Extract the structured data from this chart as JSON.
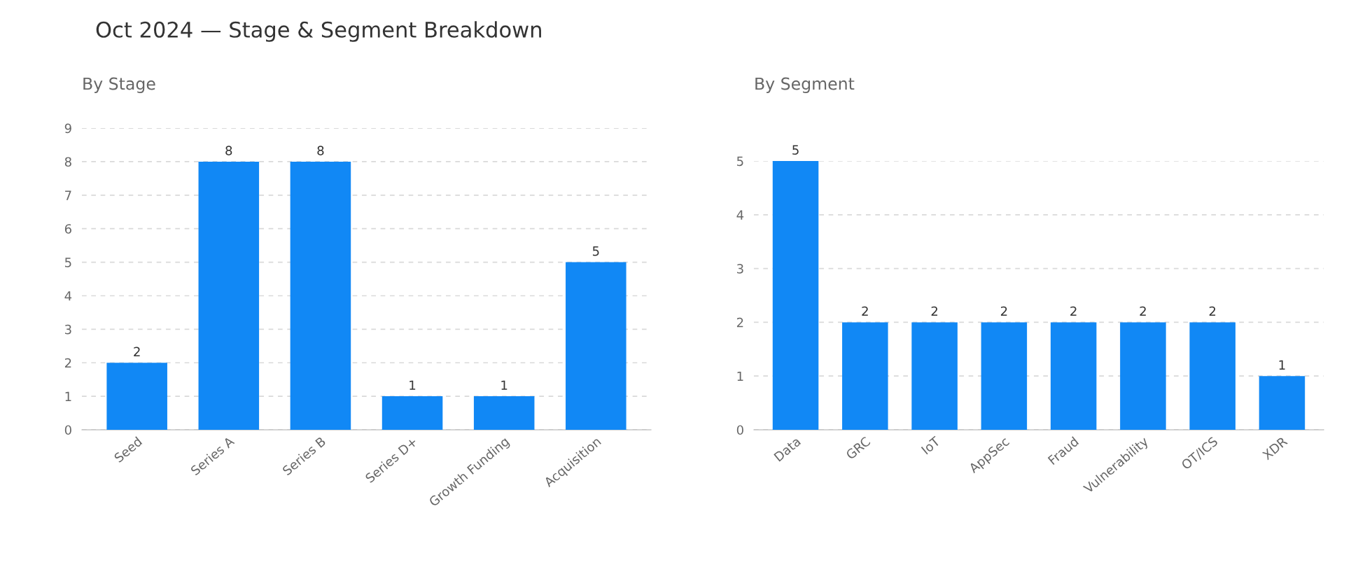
{
  "chart_data": [
    {
      "type": "bar",
      "title": "Oct 2024 — Stage & Segment Breakdown",
      "subtitle": "By Stage",
      "categories": [
        "Seed",
        "Series A",
        "Series B",
        "Series D+",
        "Growth Funding",
        "Acquisition"
      ],
      "values": [
        2,
        8,
        8,
        1,
        1,
        5
      ],
      "color": "#1188f5",
      "ylim": [
        0,
        9
      ],
      "yticks": [
        0,
        1,
        2,
        3,
        4,
        5,
        6,
        7,
        8,
        9
      ],
      "grid": "y",
      "data_labels": true
    },
    {
      "type": "bar",
      "subtitle": "By Segment",
      "categories": [
        "Data",
        "GRC",
        "IoT",
        "AppSec",
        "Fraud",
        "Vulnerability",
        "OT/ICS",
        "XDR"
      ],
      "values": [
        5,
        2,
        2,
        2,
        2,
        2,
        2,
        1
      ],
      "color": "#1188f5",
      "ylim": [
        0,
        5
      ],
      "yticks": [
        0,
        1,
        2,
        3,
        4,
        5
      ],
      "grid": "y",
      "data_labels": true
    }
  ]
}
